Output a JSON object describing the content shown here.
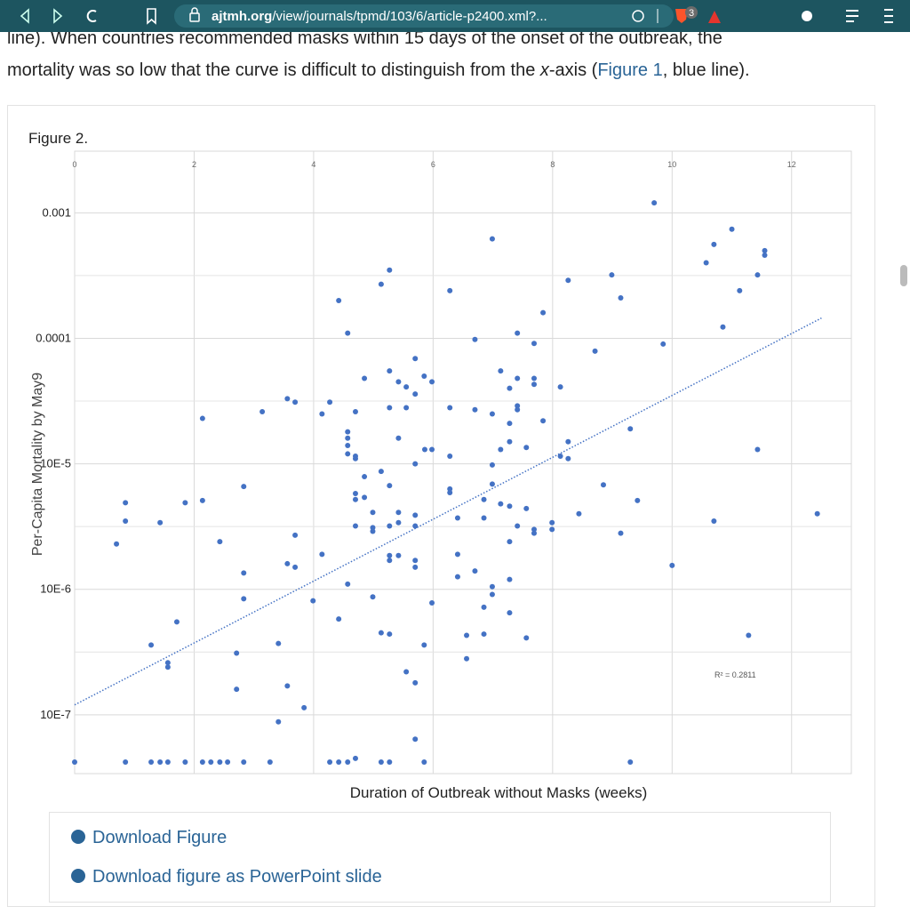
{
  "browser": {
    "url_host": "ajtmh.org",
    "url_path": "/view/journals/tpmd/103/6/article-p2400.xml?...",
    "badge": "3"
  },
  "article": {
    "line1": "line). When countries recommended masks within 15 days of the onset of the outbreak, the",
    "line2_a": "mortality was so low that the curve is difficult to distinguish from the ",
    "line2_italic": "x",
    "line2_b": "-axis (",
    "line2_link": "Figure 1",
    "line2_c": ", blue line)."
  },
  "figure_label": "Figure 2.",
  "downloads": [
    "Download Figure",
    "Download figure as PowerPoint slide"
  ],
  "chart_data": {
    "type": "scatter",
    "x_label": "Duration of Outbreak without Masks (weeks)",
    "y_label": "Per-Capita Mortality by May9",
    "color": "#4472c4",
    "log_y": true,
    "grid": true,
    "minor_grid": true,
    "xlim": [
      0,
      13
    ],
    "xticks": [
      0,
      2,
      4,
      6,
      8,
      10,
      12
    ],
    "ylim": [
      3.4e-08,
      0.0031
    ],
    "yticks": [
      0.001,
      0.0001,
      {
        "value": 1e-05,
        "label": "10E-5"
      },
      {
        "value": 1e-06,
        "label": "10E-6"
      },
      {
        "value": 1e-07,
        "label": "10E-7"
      }
    ],
    "trendline": {
      "x": [
        0,
        12.5
      ],
      "y": [
        1.2e-07,
        0.000145
      ],
      "color": "#4472c4",
      "annotation": "R² = 0.2811"
    },
    "x": [
      9.7,
      6.99,
      10.7,
      11.0,
      11.55,
      11.55,
      10.57,
      5.27,
      5.13,
      11.43,
      8.99,
      8.26,
      11.13,
      6.28,
      9.14,
      4.42,
      7.84,
      10.85,
      4.57,
      7.41,
      6.7,
      7.69,
      9.85,
      8.71,
      5.7,
      5.27,
      7.13,
      5.85,
      4.85,
      7.41,
      7.69,
      5.42,
      5.98,
      7.69,
      7.28,
      5.55,
      8.13,
      5.7,
      3.56,
      3.69,
      4.27,
      5.27,
      5.55,
      6.28,
      7.41,
      7.41,
      3.14,
      4.7,
      6.7,
      6.99,
      4.14,
      2.14,
      7.28,
      7.84,
      4.57,
      9.3,
      5.42,
      4.57,
      7.28,
      8.26,
      4.57,
      5.86,
      5.98,
      7.13,
      7.56,
      11.43,
      4.57,
      4.7,
      4.7,
      6.28,
      8.13,
      8.26,
      5.7,
      6.99,
      5.13,
      4.85,
      6.99,
      8.85,
      2.83,
      5.27,
      6.28,
      6.28,
      4.7,
      0.85,
      1.85,
      2.14,
      4.7,
      4.85,
      6.85,
      9.42,
      7.13,
      7.28,
      7.56,
      4.99,
      5.42,
      5.7,
      8.44,
      12.43,
      0.85,
      1.43,
      6.41,
      6.85,
      5.42,
      5.27,
      4.7,
      4.99,
      4.99,
      5.7,
      7.41,
      7.99,
      7.99,
      7.69,
      7.69,
      10.7,
      3.69,
      9.14,
      0.7,
      2.43,
      7.28,
      4.14,
      6.41,
      5.27,
      5.42,
      5.27,
      5.7,
      3.56,
      3.69,
      5.7,
      10.0,
      2.83,
      6.7,
      6.41,
      7.28,
      4.57,
      6.99,
      6.99,
      4.99,
      2.83,
      3.99,
      5.98,
      6.85,
      7.28,
      4.42,
      1.71,
      5.13,
      5.27,
      6.56,
      6.85,
      7.56,
      11.28,
      3.41,
      1.28,
      5.85,
      2.71,
      6.56,
      1.56,
      1.56,
      5.55,
      5.7,
      3.56,
      2.71,
      3.84,
      3.41,
      5.7,
      0,
      0.85,
      1.28,
      1.43,
      1.56,
      1.85,
      2.14,
      2.28,
      2.43,
      2.56,
      2.83,
      3.27,
      4.27,
      4.42,
      4.57,
      4.7,
      5.13,
      5.27,
      5.85,
      9.3
    ],
    "values": [
      0.0012,
      0.00062,
      0.00056,
      0.00074,
      0.0005,
      0.00046,
      0.0004,
      0.00035,
      0.00027,
      0.00032,
      0.00032,
      0.00029,
      0.00024,
      0.00024,
      0.00021,
      0.0002,
      0.00016,
      0.000123,
      0.00011,
      0.00011,
      9.8e-05,
      9.1e-05,
      9e-05,
      7.9e-05,
      6.9e-05,
      5.5e-05,
      5.5e-05,
      5e-05,
      4.8e-05,
      4.8e-05,
      4.8e-05,
      4.5e-05,
      4.5e-05,
      4.3e-05,
      4e-05,
      4.1e-05,
      4.1e-05,
      3.6e-05,
      3.3e-05,
      3.1e-05,
      3.1e-05,
      2.8e-05,
      2.8e-05,
      2.8e-05,
      2.9e-05,
      2.7e-05,
      2.6e-05,
      2.6e-05,
      2.7e-05,
      2.5e-05,
      2.5e-05,
      2.3e-05,
      2.1e-05,
      2.2e-05,
      1.8e-05,
      1.9e-05,
      1.6e-05,
      1.6e-05,
      1.5e-05,
      1.5e-05,
      1.4e-05,
      1.3e-05,
      1.3e-05,
      1.3e-05,
      1.35e-05,
      1.3e-05,
      1.2e-05,
      1.15e-05,
      1.1e-05,
      1.15e-05,
      1.15e-05,
      1.1e-05,
      1e-05,
      9.8e-06,
      8.7e-06,
      7.9e-06,
      6.9e-06,
      6.8e-06,
      6.6e-06,
      6.7e-06,
      6.3e-06,
      5.9e-06,
      5.8e-06,
      4.9e-06,
      4.9e-06,
      5.1e-06,
      5.2e-06,
      5.4e-06,
      5.2e-06,
      5.1e-06,
      4.8e-06,
      4.6e-06,
      4.4e-06,
      4.1e-06,
      4.1e-06,
      3.9e-06,
      4e-06,
      4e-06,
      3.5e-06,
      3.4e-06,
      3.7e-06,
      3.7e-06,
      3.4e-06,
      3.2e-06,
      3.2e-06,
      3.1e-06,
      2.9e-06,
      3.2e-06,
      3.2e-06,
      3.4e-06,
      3e-06,
      3e-06,
      2.8e-06,
      3.5e-06,
      2.7e-06,
      2.8e-06,
      2.3e-06,
      2.4e-06,
      2.4e-06,
      1.9e-06,
      1.9e-06,
      1.86e-06,
      1.86e-06,
      1.7e-06,
      1.7e-06,
      1.6e-06,
      1.5e-06,
      1.5e-06,
      1.55e-06,
      1.35e-06,
      1.4e-06,
      1.26e-06,
      1.2e-06,
      1.1e-06,
      1.05e-06,
      9.1e-07,
      8.7e-07,
      8.4e-07,
      8.1e-07,
      7.8e-07,
      7.2e-07,
      6.5e-07,
      5.8e-07,
      5.5e-07,
      4.5e-07,
      4.4e-07,
      4.3e-07,
      4.4e-07,
      4.1e-07,
      4.3e-07,
      3.7e-07,
      3.6e-07,
      3.6e-07,
      3.1e-07,
      2.8e-07,
      2.6e-07,
      2.4e-07,
      2.2e-07,
      1.8e-07,
      1.7e-07,
      1.6e-07,
      1.14e-07,
      8.8e-08,
      6.4e-08,
      4.2e-08,
      4.2e-08,
      4.2e-08,
      4.2e-08,
      4.2e-08,
      4.2e-08,
      4.2e-08,
      4.2e-08,
      4.2e-08,
      4.2e-08,
      4.2e-08,
      4.2e-08,
      4.2e-08,
      4.2e-08,
      4.2e-08,
      4.5e-08,
      4.2e-08,
      4.2e-08,
      4.2e-08,
      4.2e-08
    ]
  }
}
